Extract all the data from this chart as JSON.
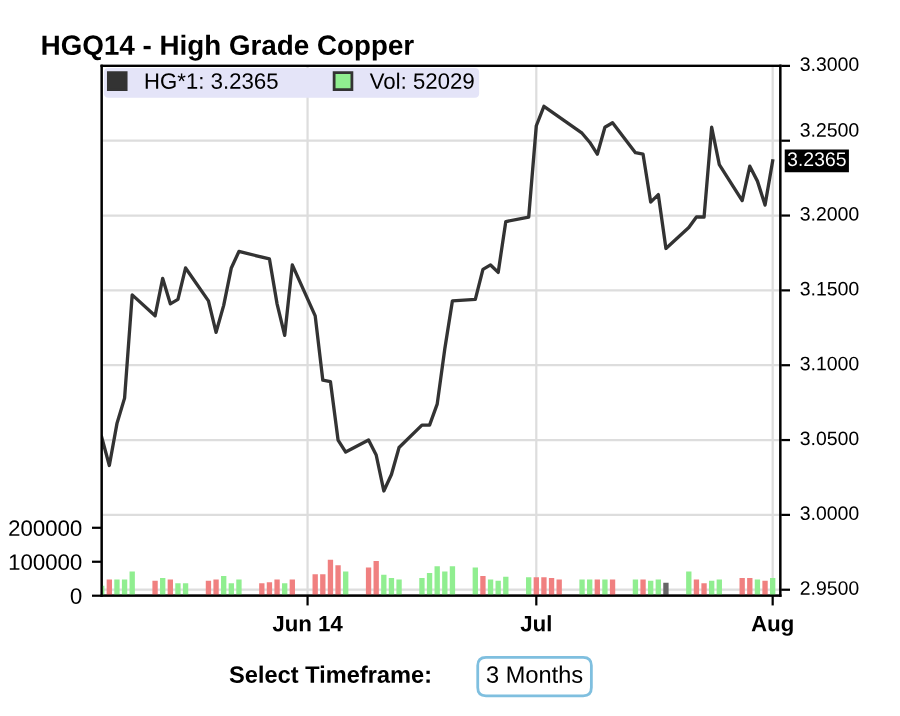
{
  "chart_data": {
    "type": "line",
    "title": "HGQ14 - High Grade Copper",
    "xlim": [
      "2014-05-05",
      "2014-08-02"
    ],
    "xticks": [
      {
        "value": "2014-06-01",
        "label": "Jun 14"
      },
      {
        "value": "2014-07-01",
        "label": "Jul"
      },
      {
        "value": "2014-08-01",
        "label": "Aug"
      }
    ],
    "ylim": [
      0,
      1560000
    ],
    "yticks": [
      0,
      100000,
      200000
    ],
    "y2lim": [
      2.946,
      3.3
    ],
    "y2ticks": [
      {
        "value": 2.95,
        "label": "2.9500"
      },
      {
        "value": 3.0,
        "label": "3.0000"
      },
      {
        "value": 3.05,
        "label": "3.0500"
      },
      {
        "value": 3.1,
        "label": "3.1000"
      },
      {
        "value": 3.15,
        "label": "3.1500"
      },
      {
        "value": 3.2,
        "label": "3.2000"
      },
      {
        "value": 3.25,
        "label": "3.2500"
      },
      {
        "value": 3.3,
        "label": "3.3000"
      }
    ],
    "grid": true,
    "legend": "top left",
    "marker": "none",
    "line_style": "solid",
    "series": [
      {
        "name": "HG*1: 3.2365",
        "axis": "y2",
        "color": "#333333",
        "x": [
          "2014-05-05",
          "2014-05-06",
          "2014-05-07",
          "2014-05-08",
          "2014-05-09",
          "2014-05-12",
          "2014-05-13",
          "2014-05-14",
          "2014-05-15",
          "2014-05-16",
          "2014-05-19",
          "2014-05-20",
          "2014-05-21",
          "2014-05-22",
          "2014-05-23",
          "2014-05-27",
          "2014-05-28",
          "2014-05-29",
          "2014-05-30",
          "2014-06-02",
          "2014-06-03",
          "2014-06-04",
          "2014-06-05",
          "2014-06-06",
          "2014-06-09",
          "2014-06-10",
          "2014-06-11",
          "2014-06-12",
          "2014-06-13",
          "2014-06-16",
          "2014-06-17",
          "2014-06-18",
          "2014-06-19",
          "2014-06-20",
          "2014-06-23",
          "2014-06-24",
          "2014-06-25",
          "2014-06-26",
          "2014-06-27",
          "2014-06-30",
          "2014-07-01",
          "2014-07-02",
          "2014-07-07",
          "2014-07-08",
          "2014-07-09",
          "2014-07-10",
          "2014-07-11",
          "2014-07-14",
          "2014-07-15",
          "2014-07-16",
          "2014-07-17",
          "2014-07-18",
          "2014-07-21",
          "2014-07-22",
          "2014-07-23",
          "2014-07-24",
          "2014-07-25",
          "2014-07-28",
          "2014-07-29",
          "2014-07-30",
          "2014-07-31",
          "2014-08-01"
        ],
        "values": [
          3.052,
          3.033,
          3.061,
          3.078,
          3.147,
          3.133,
          3.158,
          3.141,
          3.144,
          3.165,
          3.143,
          3.122,
          3.14,
          3.165,
          3.176,
          3.171,
          3.141,
          3.12,
          3.167,
          3.133,
          3.09,
          3.089,
          3.05,
          3.042,
          3.05,
          3.04,
          3.016,
          3.027,
          3.045,
          3.06,
          3.06,
          3.074,
          3.111,
          3.143,
          3.144,
          3.164,
          3.167,
          3.162,
          3.196,
          3.199,
          3.26,
          3.273,
          3.255,
          3.249,
          3.241,
          3.259,
          3.262,
          3.242,
          3.241,
          3.209,
          3.214,
          3.178,
          3.192,
          3.199,
          3.199,
          3.259,
          3.234,
          3.21,
          3.233,
          3.223,
          3.207,
          3.2365
        ]
      },
      {
        "name": "Vol: 52029",
        "type": "bar",
        "axis": "y",
        "color": "#90ee90",
        "x": [
          "2014-05-05",
          "2014-05-06",
          "2014-05-07",
          "2014-05-08",
          "2014-05-09",
          "2014-05-12",
          "2014-05-13",
          "2014-05-14",
          "2014-05-15",
          "2014-05-16",
          "2014-05-19",
          "2014-05-20",
          "2014-05-21",
          "2014-05-22",
          "2014-05-23",
          "2014-05-26",
          "2014-05-27",
          "2014-05-28",
          "2014-05-29",
          "2014-05-30",
          "2014-06-02",
          "2014-06-03",
          "2014-06-04",
          "2014-06-05",
          "2014-06-06",
          "2014-06-09",
          "2014-06-10",
          "2014-06-11",
          "2014-06-12",
          "2014-06-13",
          "2014-06-16",
          "2014-06-17",
          "2014-06-18",
          "2014-06-19",
          "2014-06-20",
          "2014-06-23",
          "2014-06-24",
          "2014-06-25",
          "2014-06-26",
          "2014-06-27",
          "2014-06-30",
          "2014-07-01",
          "2014-07-02",
          "2014-07-03",
          "2014-07-04",
          "2014-07-07",
          "2014-07-08",
          "2014-07-09",
          "2014-07-10",
          "2014-07-11",
          "2014-07-14",
          "2014-07-15",
          "2014-07-16",
          "2014-07-17",
          "2014-07-18",
          "2014-07-21",
          "2014-07-22",
          "2014-07-23",
          "2014-07-24",
          "2014-07-25",
          "2014-07-28",
          "2014-07-29",
          "2014-07-30",
          "2014-07-31",
          "2014-08-01"
        ],
        "values": [
          29000,
          48000,
          48000,
          48000,
          71000,
          44000,
          52000,
          48000,
          37000,
          37000,
          44000,
          48000,
          58000,
          37000,
          48000,
          37000,
          40000,
          48000,
          37000,
          48000,
          63000,
          63000,
          106000,
          90000,
          71000,
          83000,
          102000,
          62000,
          52000,
          48000,
          52000,
          67000,
          87000,
          71000,
          87000,
          83000,
          58000,
          48000,
          44000,
          56000,
          54000,
          54000,
          54000,
          52000,
          48000,
          48000,
          48000,
          48000,
          48000,
          48000,
          48000,
          48000,
          44000,
          48000,
          38000,
          71000,
          48000,
          37000,
          44000,
          48000,
          52000,
          52000,
          48000,
          44000,
          52029
        ],
        "colors": [
          "#90ee90",
          "#f08080",
          "#90ee90",
          "#90ee90",
          "#90ee90",
          "#f08080",
          "#90ee90",
          "#f08080",
          "#90ee90",
          "#90ee90",
          "#f08080",
          "#f08080",
          "#90ee90",
          "#90ee90",
          "#90ee90",
          "#f08080",
          "#f08080",
          "#f08080",
          "#90ee90",
          "#f08080",
          "#f08080",
          "#f08080",
          "#f08080",
          "#f08080",
          "#90ee90",
          "#f08080",
          "#f08080",
          "#90ee90",
          "#90ee90",
          "#90ee90",
          "#90ee90",
          "#90ee90",
          "#90ee90",
          "#90ee90",
          "#90ee90",
          "#90ee90",
          "#f08080",
          "#90ee90",
          "#90ee90",
          "#90ee90",
          "#90ee90",
          "#f08080",
          "#f08080",
          "#f08080",
          "#f08080",
          "#90ee90",
          "#90ee90",
          "#f08080",
          "#90ee90",
          "#f08080",
          "#90ee90",
          "#f08080",
          "#90ee90",
          "#90ee90",
          "#666666",
          "#90ee90",
          "#f08080",
          "#f08080",
          "#90ee90",
          "#90ee90",
          "#f08080",
          "#f08080",
          "#90ee90",
          "#f08080",
          "#90ee90"
        ]
      }
    ],
    "annotations": [
      "Select Timeframe:",
      "3 Months",
      "3.2365"
    ]
  }
}
